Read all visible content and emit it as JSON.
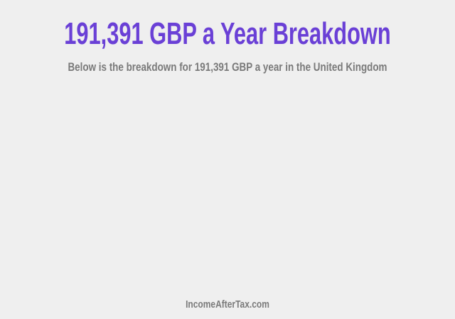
{
  "title": "191,391 GBP a Year Breakdown",
  "subtitle": "Below is the breakdown for 191,391 GBP a year in the United Kingdom",
  "footer": "IncomeAfterTax.com",
  "colors": {
    "title": "#6a40d6",
    "text": "#7a7a7a",
    "background": "#efefef"
  }
}
